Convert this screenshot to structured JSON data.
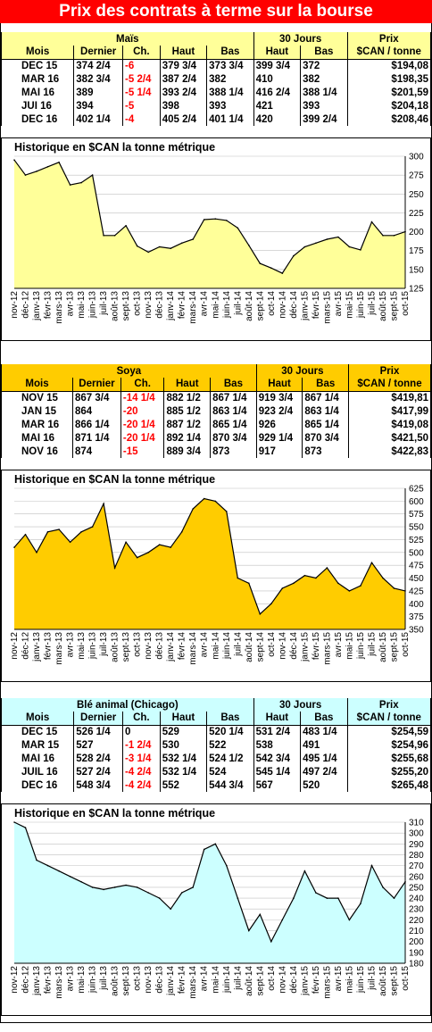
{
  "page_title": "Prix des contrats à terme sur la bourse",
  "sections": [
    {
      "id": "mais",
      "header": {
        "commodity": "Maïs",
        "range_group": "30 Jours",
        "price_group": "Prix"
      },
      "columns": [
        "Mois",
        "Dernier",
        "Ch.",
        "Haut",
        "Bas",
        "Haut",
        "Bas",
        "$CAN / tonne"
      ],
      "rows": [
        [
          "DEC 15",
          "374 2/4",
          "-6",
          "379 3/4",
          "373 3/4",
          "399 3/4",
          "372",
          "$194,08"
        ],
        [
          "MAR 16",
          "382 3/4",
          "-5 2/4",
          "387 2/4",
          "382",
          "410",
          "382",
          "$198,35"
        ],
        [
          "MAI 16",
          "389",
          "-5 1/4",
          "393 2/4",
          "388 1/4",
          "416 2/4",
          "388 1/4",
          "$201,59"
        ],
        [
          "JUI 16",
          "394",
          "-5",
          "398",
          "393",
          "421",
          "393",
          "$204,18"
        ],
        [
          "DEC 16",
          "402 1/4",
          "-4",
          "405 2/4",
          "401 1/4",
          "420",
          "399 2/4",
          "$208,46"
        ]
      ],
      "colors": {
        "header_bg": "#ffff99",
        "chart_fill": "#ffff99"
      }
    },
    {
      "id": "soya",
      "header": {
        "commodity": "Soya",
        "range_group": "30 Jours",
        "price_group": "Prix"
      },
      "columns": [
        "Mois",
        "Dernier",
        "Ch.",
        "Haut",
        "Bas",
        "Haut",
        "Bas",
        "$CAN / tonne"
      ],
      "rows": [
        [
          "NOV 15",
          "867 3/4",
          "-14 1/4",
          "882 1/2",
          "867 1/4",
          "919 3/4",
          "867 1/4",
          "$419,81"
        ],
        [
          "JAN 15",
          "864",
          "-20",
          "885 1/2",
          "863 1/4",
          "923 2/4",
          "863 1/4",
          "$417,99"
        ],
        [
          "MAR 16",
          "866 1/4",
          "-20 1/4",
          "887 1/2",
          "865 1/4",
          "926",
          "865 1/4",
          "$419,08"
        ],
        [
          "MAI 16",
          "871 1/4",
          "-20 1/4",
          "892 1/4",
          "870 3/4",
          "929 1/4",
          "870 3/4",
          "$421,50"
        ],
        [
          "NOV 16",
          "874",
          "-15",
          "889 3/4",
          "873",
          "917",
          "873",
          "$422,83"
        ]
      ],
      "colors": {
        "header_bg": "#ffcc00",
        "chart_fill": "#ffcc00"
      }
    },
    {
      "id": "ble",
      "header": {
        "commodity": "Blé animal (Chicago)",
        "range_group": "30 Jours",
        "price_group": "Prix"
      },
      "columns": [
        "Mois",
        "Dernier",
        "Ch.",
        "Haut",
        "Bas",
        "Haut",
        "Bas",
        "$CAN / tonne"
      ],
      "rows": [
        [
          "DEC 15",
          "526 1/4",
          "0",
          "529",
          "520 1/4",
          "531 2/4",
          "483 1/4",
          "$254,59"
        ],
        [
          "MAR 15",
          "527",
          "-1 2/4",
          "530",
          "522",
          "538",
          "491",
          "$254,96"
        ],
        [
          "MAI 16",
          "528 2/4",
          "-3 1/4",
          "532 1/4",
          "524 1/2",
          "542 3/4",
          "495 1/4",
          "$255,68"
        ],
        [
          "JUIL 16",
          "527 2/4",
          "-4 2/4",
          "532 1/4",
          "524",
          "545 1/4",
          "497 2/4",
          "$255,20"
        ],
        [
          "DEC 16",
          "548 3/4",
          "-4 2/4",
          "552",
          "544 3/4",
          "567",
          "520",
          "$265,48"
        ]
      ],
      "colors": {
        "header_bg": "#ccffff",
        "chart_fill": "#ccffff"
      }
    }
  ],
  "chart_data": [
    {
      "type": "area",
      "title": "Historique en $CAN la tonne métrique",
      "x": [
        "nov-12",
        "déc-12",
        "janv-13",
        "févr-13",
        "mars-13",
        "avr-13",
        "mai-13",
        "juin-13",
        "juil-13",
        "août-13",
        "sept-13",
        "oct-13",
        "nov-13",
        "déc-13",
        "janv-14",
        "févr-14",
        "mars-14",
        "avr-14",
        "mai-14",
        "juin-14",
        "juil-14",
        "août-14",
        "sept-14",
        "oct-14",
        "nov-14",
        "déc-14",
        "janv-15",
        "févr-15",
        "mars-15",
        "avr-15",
        "mai-15",
        "juin-15",
        "juil-15",
        "août-15",
        "sept-15",
        "oct-15"
      ],
      "values": [
        295,
        275,
        280,
        286,
        292,
        262,
        265,
        275,
        195,
        195,
        208,
        181,
        173,
        180,
        178,
        185,
        190,
        216,
        217,
        215,
        205,
        182,
        158,
        152,
        145,
        168,
        180,
        185,
        190,
        193,
        180,
        176,
        213,
        195,
        195,
        200
      ],
      "ylim": [
        125,
        300
      ],
      "yticks": [
        125,
        150,
        175,
        200,
        225,
        250,
        275,
        300
      ],
      "grid": true,
      "fill_color": "#ffff99"
    },
    {
      "type": "area",
      "title": "Historique en $CAN la tonne métrique",
      "x": [
        "nov-12",
        "déc-12",
        "janv-13",
        "févr-13",
        "mars-13",
        "avr-13",
        "mai-13",
        "juin-13",
        "juil-13",
        "août-13",
        "sept-13",
        "oct-13",
        "nov-13",
        "déc-13",
        "janv-14",
        "févr-14",
        "mars-14",
        "avr-14",
        "mai-14",
        "juin-14",
        "juil-14",
        "août-14",
        "sept-14",
        "oct-14",
        "nov-14",
        "déc-14",
        "janv-15",
        "févr-15",
        "mars-15",
        "avr-15",
        "mai-15",
        "juin-15",
        "juil-15",
        "août-15",
        "sept-15",
        "oct-15"
      ],
      "values": [
        510,
        535,
        500,
        540,
        545,
        520,
        540,
        550,
        595,
        470,
        520,
        490,
        500,
        515,
        510,
        540,
        585,
        605,
        600,
        580,
        450,
        440,
        380,
        400,
        430,
        440,
        455,
        450,
        470,
        440,
        425,
        435,
        480,
        450,
        430,
        425
      ],
      "ylim": [
        350,
        625
      ],
      "yticks": [
        350,
        375,
        400,
        425,
        450,
        475,
        500,
        525,
        550,
        575,
        600,
        625
      ],
      "grid": true,
      "fill_color": "#ffcc00"
    },
    {
      "type": "area",
      "title": "Historique en $CAN la tonne métrique",
      "x": [
        "nov-12",
        "déc-12",
        "janv-13",
        "févr-13",
        "mars-13",
        "avr-13",
        "mai-13",
        "juin-13",
        "juil-13",
        "août-13",
        "sept-13",
        "oct-13",
        "nov-13",
        "déc-13",
        "janv-14",
        "févr-14",
        "mars-14",
        "avr-14",
        "mai-14",
        "juin-14",
        "juil-14",
        "août-14",
        "sept-14",
        "oct-14",
        "nov-14",
        "déc-14",
        "janv-15",
        "févr-15",
        "mars-15",
        "avr-15",
        "mai-15",
        "juin-15",
        "juil-15",
        "août-15",
        "sept-15",
        "oct-15"
      ],
      "values": [
        310,
        305,
        275,
        270,
        265,
        260,
        255,
        250,
        248,
        250,
        252,
        250,
        245,
        240,
        230,
        245,
        250,
        285,
        290,
        270,
        240,
        210,
        225,
        200,
        220,
        240,
        265,
        245,
        240,
        240,
        220,
        235,
        270,
        250,
        240,
        255
      ],
      "ylim": [
        180,
        310
      ],
      "yticks": [
        180,
        190,
        200,
        210,
        220,
        230,
        240,
        250,
        260,
        270,
        280,
        290,
        300,
        310
      ],
      "grid": true,
      "fill_color": "#ccffff"
    }
  ]
}
